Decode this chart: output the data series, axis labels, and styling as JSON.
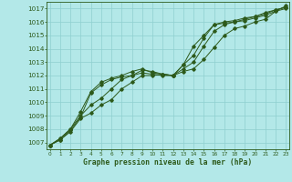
{
  "title": "Graphe pression niveau de la mer (hPa)",
  "hours": [
    0,
    1,
    2,
    3,
    4,
    5,
    6,
    7,
    8,
    9,
    10,
    11,
    12,
    13,
    14,
    15,
    16,
    17,
    18,
    19,
    20,
    21,
    22,
    23
  ],
  "ylim": [
    1006.5,
    1017.5
  ],
  "xlim": [
    -0.3,
    23.3
  ],
  "yticks": [
    1007,
    1008,
    1009,
    1010,
    1011,
    1012,
    1013,
    1014,
    1015,
    1016,
    1017
  ],
  "bg_color": "#b3e8e8",
  "line_color": "#2d5a1b",
  "grid_color": "#8ecfcf",
  "series": [
    [
      1006.8,
      1007.2,
      1007.8,
      1008.8,
      1009.2,
      1009.8,
      1010.2,
      1011.0,
      1011.5,
      1012.0,
      1012.0,
      1012.1,
      1012.0,
      1012.3,
      1012.5,
      1013.2,
      1014.1,
      1015.0,
      1015.5,
      1015.7,
      1016.0,
      1016.2,
      1016.8,
      1017.2
    ],
    [
      1006.8,
      1007.2,
      1007.9,
      1008.9,
      1010.7,
      1011.3,
      1011.7,
      1011.9,
      1012.0,
      1012.2,
      1012.1,
      1012.0,
      1012.0,
      1012.5,
      1013.0,
      1014.2,
      1015.3,
      1015.8,
      1016.0,
      1016.2,
      1016.4,
      1016.7,
      1016.9,
      1017.1
    ],
    [
      1006.8,
      1007.3,
      1008.0,
      1009.0,
      1009.8,
      1010.3,
      1011.0,
      1011.7,
      1012.0,
      1012.4,
      1012.3,
      1012.1,
      1012.0,
      1012.8,
      1013.5,
      1014.8,
      1015.8,
      1016.0,
      1016.1,
      1016.3,
      1016.4,
      1016.6,
      1016.9,
      1017.1
    ],
    [
      1006.8,
      1007.3,
      1008.0,
      1009.3,
      1010.8,
      1011.5,
      1011.8,
      1012.0,
      1012.3,
      1012.5,
      1012.2,
      1012.1,
      1012.0,
      1012.8,
      1014.2,
      1015.0,
      1015.8,
      1015.9,
      1016.0,
      1016.1,
      1016.3,
      1016.5,
      1016.8,
      1017.0
    ]
  ]
}
